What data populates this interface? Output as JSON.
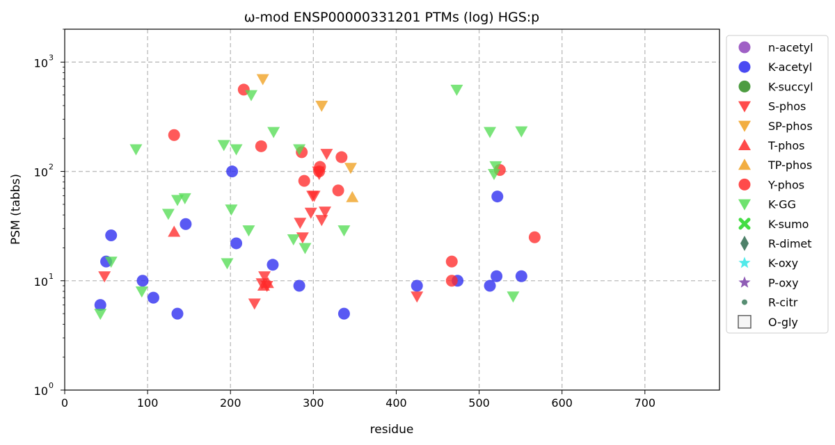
{
  "chart_data": {
    "type": "scatter",
    "title": "ω-mod ENSP00000331201 PTMs (log) HGS:p",
    "xlabel": "residue",
    "ylabel": "PSM (tabbs)",
    "xlim": [
      0,
      790
    ],
    "ylim": [
      1,
      2000
    ],
    "y_scale": "log",
    "grid": true,
    "legend_placement": "outside-right",
    "x_ticks": [
      "0",
      "100",
      "200",
      "300",
      "400",
      "500",
      "600",
      "700"
    ],
    "y_ticks": [
      {
        "value": 1,
        "base": "10",
        "exp": "0"
      },
      {
        "value": 10,
        "base": "10",
        "exp": "1"
      },
      {
        "value": 100,
        "base": "10",
        "exp": "2"
      },
      {
        "value": 1000,
        "base": "10",
        "exp": "3"
      }
    ],
    "series": [
      {
        "name": "n-acetyl",
        "marker": "circle",
        "color": "#8e44bb",
        "points": []
      },
      {
        "name": "K-acetyl",
        "marker": "circle",
        "color": "#2a2af0",
        "points": [
          [
            43,
            6
          ],
          [
            50,
            15
          ],
          [
            56,
            26
          ],
          [
            94,
            10
          ],
          [
            107,
            7
          ],
          [
            136,
            5
          ],
          [
            146,
            33
          ],
          [
            202,
            100
          ],
          [
            207,
            22
          ],
          [
            251,
            14
          ],
          [
            283,
            9
          ],
          [
            337,
            5
          ],
          [
            425,
            9
          ],
          [
            474,
            10
          ],
          [
            513,
            9
          ],
          [
            521,
            11
          ],
          [
            522,
            59
          ],
          [
            551,
            11
          ]
        ]
      },
      {
        "name": "K-succyl",
        "marker": "circle",
        "color": "#2e8b20",
        "points": []
      },
      {
        "name": "S-phos",
        "marker": "triangle-down",
        "color": "#ff2a2a",
        "points": [
          [
            48,
            11
          ],
          [
            229,
            6.2
          ],
          [
            238,
            9.5
          ],
          [
            241,
            11
          ],
          [
            244,
            9
          ],
          [
            284,
            34
          ],
          [
            287,
            25
          ],
          [
            297,
            42
          ],
          [
            299,
            60
          ],
          [
            301,
            60
          ],
          [
            306,
            100
          ],
          [
            307,
            95
          ],
          [
            310,
            36
          ],
          [
            314,
            43
          ],
          [
            316,
            145
          ],
          [
            425,
            7.2
          ]
        ]
      },
      {
        "name": "SP-phos",
        "marker": "triangle-down",
        "color": "#f0a020",
        "points": [
          [
            239,
            700
          ],
          [
            310,
            400
          ],
          [
            345,
            108
          ]
        ]
      },
      {
        "name": "T-phos",
        "marker": "triangle-up",
        "color": "#ff2a2a",
        "points": [
          [
            132,
            28
          ],
          [
            240,
            9
          ],
          [
            245,
            9.5
          ]
        ]
      },
      {
        "name": "TP-phos",
        "marker": "triangle-up",
        "color": "#f0a020",
        "points": [
          [
            347,
            58
          ]
        ]
      },
      {
        "name": "Y-phos",
        "marker": "circle",
        "color": "#ff2a2a",
        "points": [
          [
            132,
            215
          ],
          [
            216,
            560
          ],
          [
            237,
            170
          ],
          [
            286,
            150
          ],
          [
            289,
            82
          ],
          [
            307,
            100
          ],
          [
            308,
            110
          ],
          [
            330,
            67
          ],
          [
            334,
            135
          ],
          [
            467,
            15
          ],
          [
            467,
            10
          ],
          [
            525,
            103
          ],
          [
            567,
            25
          ]
        ]
      },
      {
        "name": "K-GG",
        "marker": "triangle-down",
        "color": "#55dd55",
        "points": [
          [
            43,
            5
          ],
          [
            56,
            15
          ],
          [
            86,
            160
          ],
          [
            93,
            8
          ],
          [
            125,
            41
          ],
          [
            136,
            55
          ],
          [
            145,
            57
          ],
          [
            192,
            175
          ],
          [
            196,
            14.5
          ],
          [
            201,
            45
          ],
          [
            207,
            160
          ],
          [
            222,
            29
          ],
          [
            225,
            500
          ],
          [
            252,
            230
          ],
          [
            276,
            24
          ],
          [
            283,
            160
          ],
          [
            290,
            20
          ],
          [
            337,
            29
          ],
          [
            473,
            560
          ],
          [
            513,
            230
          ],
          [
            518,
            95
          ],
          [
            520,
            112
          ],
          [
            541,
            7.2
          ],
          [
            551,
            233
          ]
        ]
      },
      {
        "name": "K-sumo",
        "marker": "x",
        "color": "#44dd44",
        "points": []
      },
      {
        "name": "R-dimet",
        "marker": "diamond",
        "color": "#2f6b4f",
        "points": []
      },
      {
        "name": "K-oxy",
        "marker": "star",
        "color": "#33e6e6",
        "points": []
      },
      {
        "name": "P-oxy",
        "marker": "star",
        "color": "#7b3fa8",
        "points": []
      },
      {
        "name": "R-citr",
        "marker": "small-circle",
        "color": "#3a7a5a",
        "points": []
      },
      {
        "name": "O-gly",
        "marker": "square-open",
        "color": "#555555",
        "points": []
      }
    ]
  }
}
